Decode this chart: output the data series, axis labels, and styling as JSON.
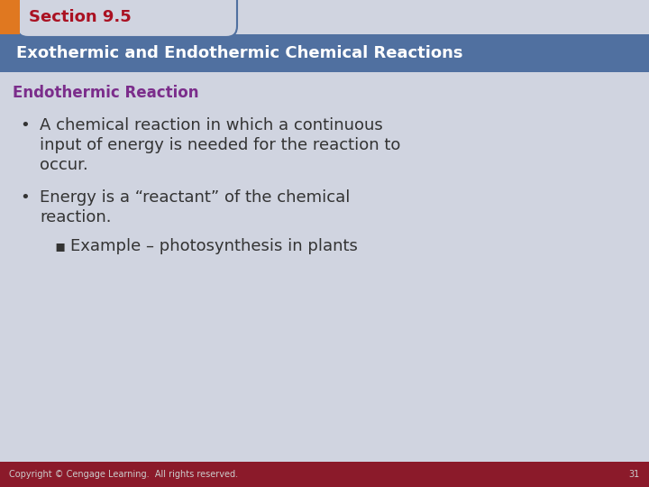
{
  "bg_color": "#d0d4e0",
  "orange_rect_color": "#e07820",
  "section_text": "Section 9.5",
  "section_text_color": "#aa1122",
  "title_bar_color": "#5070a0",
  "title_text": "Exothermic and Endothermic Chemical Reactions",
  "title_text_color": "#ffffff",
  "subtitle_text": "Endothermic Reaction",
  "subtitle_color": "#7b2d8b",
  "bullet1_line1": "A chemical reaction in which a continuous",
  "bullet1_line2": "input of energy is needed for the reaction to",
  "bullet1_line3": "occur.",
  "bullet2_line1": "Energy is a “reactant” of the chemical",
  "bullet2_line2": "reaction.",
  "sub_bullet": "Example – photosynthesis in plants",
  "bullet_color": "#333333",
  "footer_bar_color": "#8b1a2a",
  "footer_text": "Copyright © Cengage Learning.  All rights reserved.",
  "footer_text_color": "#cccccc",
  "page_number": "31",
  "page_number_color": "#cccccc",
  "tab_bg_color": "#d0d4e0",
  "tab_border_color": "#5070a0"
}
